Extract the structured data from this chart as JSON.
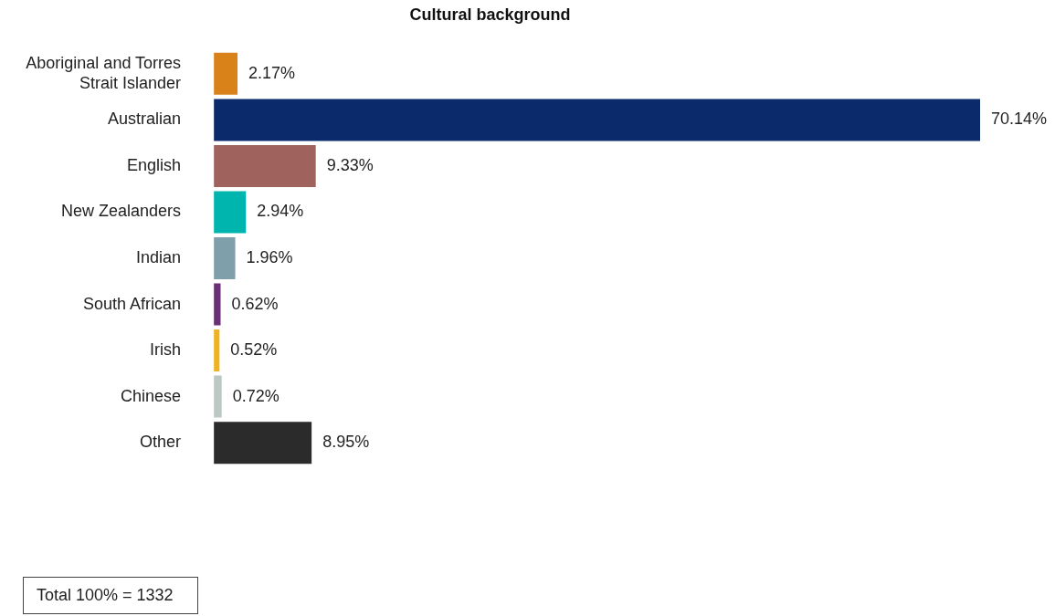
{
  "chart_data": {
    "type": "bar",
    "orientation": "horizontal",
    "title": "Cultural background",
    "categories": [
      "Aboriginal and Torres Strait Islander",
      "Australian",
      "English",
      "New Zealanders",
      "Indian",
      "South African",
      "Irish",
      "Chinese",
      "Other"
    ],
    "values": [
      2.17,
      70.14,
      9.33,
      2.94,
      1.96,
      0.62,
      0.52,
      0.72,
      8.95
    ],
    "value_labels": [
      "2.17%",
      "70.14%",
      "9.33%",
      "2.94%",
      "1.96%",
      "0.62%",
      "0.52%",
      "0.72%",
      "8.95%"
    ],
    "colors": [
      "#d9821a",
      "#0a2a6b",
      "#a0625d",
      "#00b5ad",
      "#7f9faa",
      "#6a3075",
      "#f0b323",
      "#bcc8c5",
      "#2b2b2b"
    ],
    "legend": false,
    "annotations": [
      "Total 100% = 1332"
    ]
  }
}
